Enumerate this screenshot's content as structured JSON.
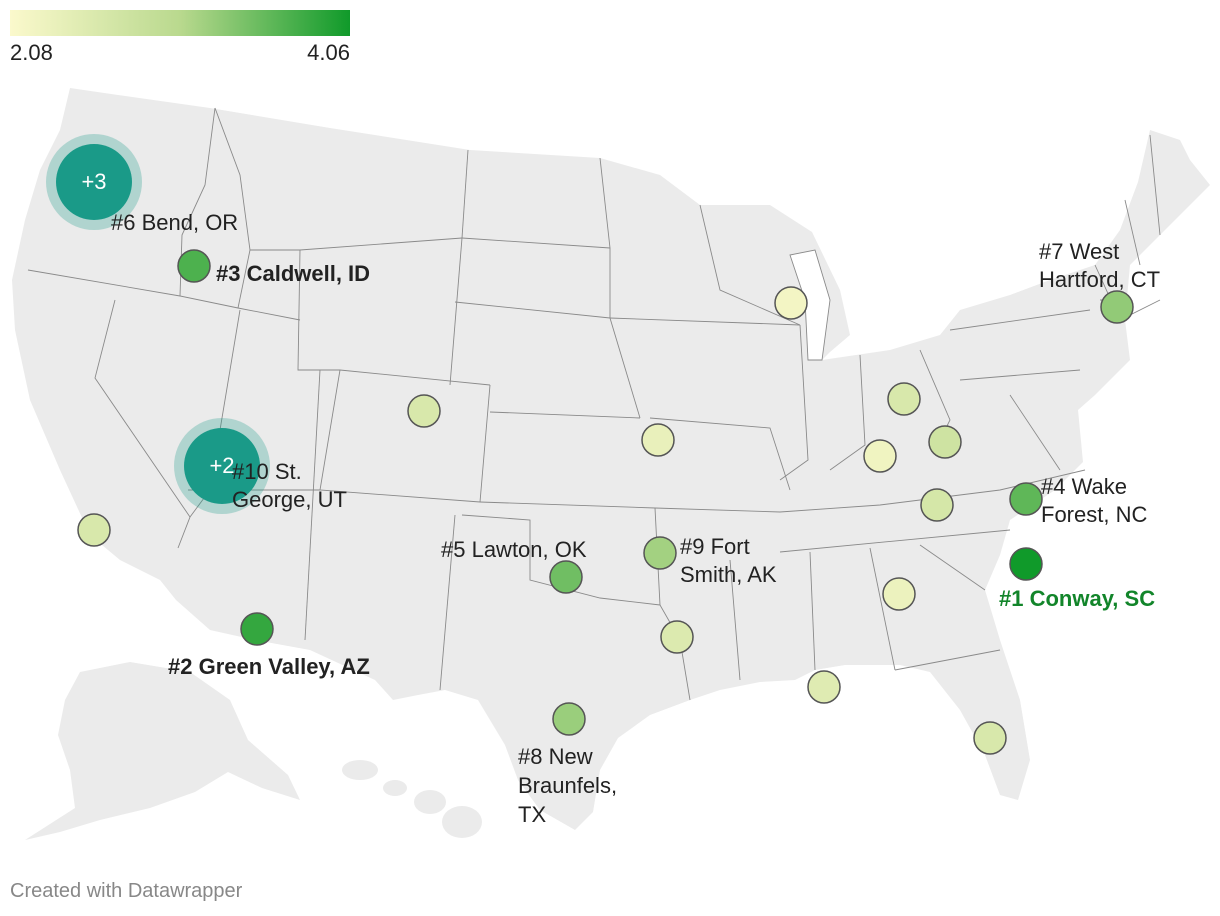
{
  "legend": {
    "min_label": "2.08",
    "max_label": "4.06",
    "min_value": 2.08,
    "max_value": 4.06,
    "color_low": "#fbf9cc",
    "color_mid": "#b9d98e",
    "color_high": "#109a2a"
  },
  "map": {
    "land_color": "#ebebeb",
    "border_color": "#8a8a8a",
    "cluster_color": "#1a9a88"
  },
  "clusters": [
    {
      "id": "pacific-northwest",
      "label": "+3"
    },
    {
      "id": "southwest-utah",
      "label": "+2"
    }
  ],
  "ranked_cities": [
    {
      "rank": 1,
      "label": "#1 Conway, SC",
      "bold": true,
      "highlight": true,
      "lines": [
        "#1 Conway, SC"
      ]
    },
    {
      "rank": 2,
      "label": "#2 Green Valley, AZ",
      "bold": true,
      "lines": [
        "#2 Green Valley, AZ"
      ]
    },
    {
      "rank": 3,
      "label": "#3 Caldwell, ID",
      "bold": true,
      "lines": [
        "#3 Caldwell, ID"
      ]
    },
    {
      "rank": 4,
      "label": "#4 Wake Forest, NC",
      "lines": [
        "#4 Wake",
        "Forest, NC"
      ]
    },
    {
      "rank": 5,
      "label": "#5 Lawton, OK",
      "lines": [
        "#5 Lawton, OK"
      ]
    },
    {
      "rank": 6,
      "label": "#6 Bend, OR",
      "lines": [
        "#6 Bend, OR"
      ]
    },
    {
      "rank": 7,
      "label": "#7 West Hartford, CT",
      "lines": [
        "#7 West",
        "Hartford, CT"
      ]
    },
    {
      "rank": 8,
      "label": "#8 New Braunfels, TX",
      "lines": [
        "#8 New",
        "Braunfels,",
        "TX"
      ]
    },
    {
      "rank": 9,
      "label": "#9 Fort Smith, AK",
      "lines": [
        "#9 Fort",
        "Smith, AK"
      ]
    },
    {
      "rank": 10,
      "label": "#10 St. George, UT",
      "lines": [
        "#10 St.",
        "George, UT"
      ]
    }
  ],
  "unlabeled_markers": [
    {
      "id": "wisconsin",
      "value": 2.2
    },
    {
      "id": "colorado",
      "value": 2.6
    },
    {
      "id": "kansas-city",
      "value": 2.35
    },
    {
      "id": "ohio",
      "value": 2.6
    },
    {
      "id": "kentucky",
      "value": 2.25
    },
    {
      "id": "west-virginia",
      "value": 2.75
    },
    {
      "id": "tennessee",
      "value": 2.65
    },
    {
      "id": "southern-california",
      "value": 2.6
    },
    {
      "id": "georgia",
      "value": 2.3
    },
    {
      "id": "louisiana",
      "value": 2.55
    },
    {
      "id": "gulf-coast",
      "value": 2.5
    },
    {
      "id": "florida",
      "value": 2.6
    }
  ],
  "footer": {
    "credit": "Created with Datawrapper"
  }
}
